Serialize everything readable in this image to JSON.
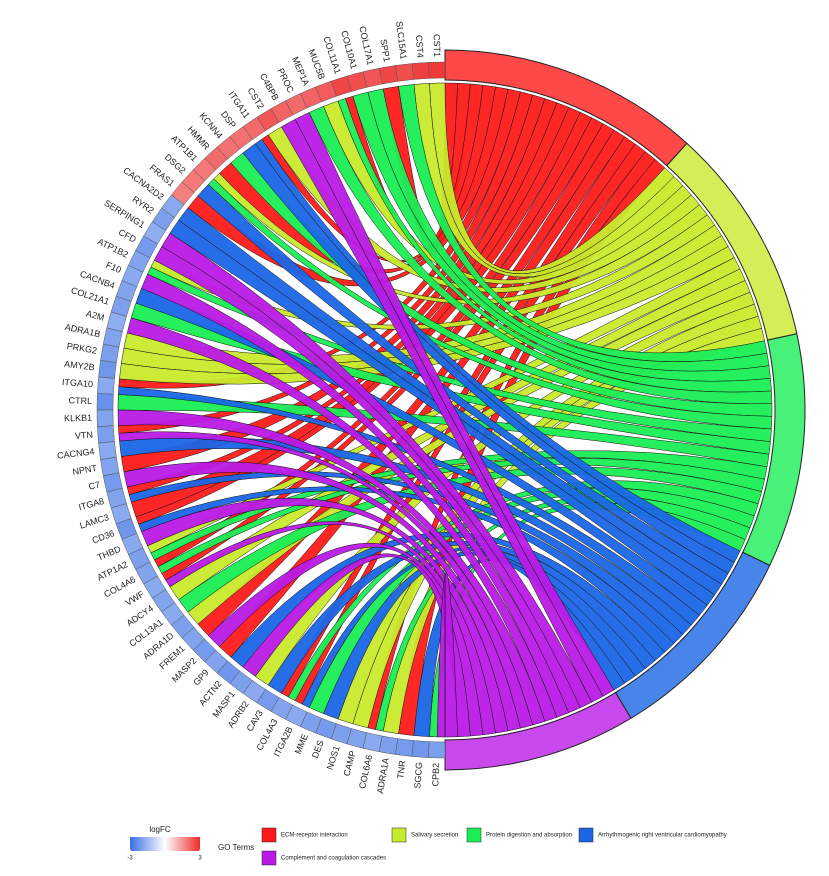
{
  "chart_data": {
    "type": "chord",
    "genes": [
      {
        "name": "CST1",
        "logfc": 2.8
      },
      {
        "name": "CST4",
        "logfc": 2.7
      },
      {
        "name": "SLC15A1",
        "logfc": 2.5
      },
      {
        "name": "SPP1",
        "logfc": 2.6
      },
      {
        "name": "COL17A1",
        "logfc": 2.4
      },
      {
        "name": "COL10A1",
        "logfc": 2.5
      },
      {
        "name": "COL11A1",
        "logfc": 2.6
      },
      {
        "name": "MUC5B",
        "logfc": 2.3
      },
      {
        "name": "MEP1A",
        "logfc": 2.2
      },
      {
        "name": "PROC",
        "logfc": 2.1
      },
      {
        "name": "C4BPB",
        "logfc": 2.2
      },
      {
        "name": "CST2",
        "logfc": 2.4
      },
      {
        "name": "ITGA11",
        "logfc": 2.1
      },
      {
        "name": "DSP",
        "logfc": 2.0
      },
      {
        "name": "KCNN4",
        "logfc": 2.0
      },
      {
        "name": "HMMR",
        "logfc": 2.1
      },
      {
        "name": "ATP1B1",
        "logfc": 1.9
      },
      {
        "name": "DSG2",
        "logfc": 1.9
      },
      {
        "name": "FRAS1",
        "logfc": 1.8
      },
      {
        "name": "CACNA2D2",
        "logfc": -1.8
      },
      {
        "name": "RYR2",
        "logfc": -2.0
      },
      {
        "name": "SERPING1",
        "logfc": -1.7
      },
      {
        "name": "CFD",
        "logfc": -2.1
      },
      {
        "name": "ATP1B2",
        "logfc": -1.9
      },
      {
        "name": "F10",
        "logfc": -1.8
      },
      {
        "name": "CACNB4",
        "logfc": -1.9
      },
      {
        "name": "COL21A1",
        "logfc": -2.0
      },
      {
        "name": "A2M",
        "logfc": -1.7
      },
      {
        "name": "ADRA1B",
        "logfc": -1.9
      },
      {
        "name": "PRKG2",
        "logfc": -2.0
      },
      {
        "name": "AMY2B",
        "logfc": -2.2
      },
      {
        "name": "ITGA10",
        "logfc": -1.8
      },
      {
        "name": "CTRL",
        "logfc": -2.3
      },
      {
        "name": "KLKB1",
        "logfc": -1.9
      },
      {
        "name": "VTN",
        "logfc": -2.0
      },
      {
        "name": "CACNG4",
        "logfc": -1.8
      },
      {
        "name": "NPNT",
        "logfc": -1.9
      },
      {
        "name": "C7",
        "logfc": -2.1
      },
      {
        "name": "ITGA8",
        "logfc": -1.9
      },
      {
        "name": "LAMC3",
        "logfc": -1.8
      },
      {
        "name": "CD36",
        "logfc": -2.2
      },
      {
        "name": "THBD",
        "logfc": -1.8
      },
      {
        "name": "ATP1A2",
        "logfc": -2.0
      },
      {
        "name": "COL4A6",
        "logfc": -1.9
      },
      {
        "name": "VWF",
        "logfc": -1.8
      },
      {
        "name": "ADCY4",
        "logfc": -1.9
      },
      {
        "name": "COL13A1",
        "logfc": -1.8
      },
      {
        "name": "ADRA1D",
        "logfc": -2.0
      },
      {
        "name": "FREM1",
        "logfc": -1.9
      },
      {
        "name": "MASP2",
        "logfc": -2.1
      },
      {
        "name": "GP9",
        "logfc": -1.9
      },
      {
        "name": "ACTN2",
        "logfc": -2.2
      },
      {
        "name": "MASP1",
        "logfc": -2.0
      },
      {
        "name": "ADRB2",
        "logfc": -1.8
      },
      {
        "name": "CAV3",
        "logfc": -2.1
      },
      {
        "name": "COL4A3",
        "logfc": -1.9
      },
      {
        "name": "ITGA2B",
        "logfc": -1.8
      },
      {
        "name": "MME",
        "logfc": -2.0
      },
      {
        "name": "DES",
        "logfc": -2.1
      },
      {
        "name": "NOS1",
        "logfc": -2.0
      },
      {
        "name": "CAMP",
        "logfc": -1.9
      },
      {
        "name": "COL6A6",
        "logfc": -1.8
      },
      {
        "name": "ADRA1A",
        "logfc": -2.0
      },
      {
        "name": "TNR",
        "logfc": -2.1
      },
      {
        "name": "SGCG",
        "logfc": -2.2
      },
      {
        "name": "CPB2",
        "logfc": -2.0
      }
    ],
    "terms": [
      {
        "name": "ECM-receptor interaction",
        "color": "#ff1a1a",
        "members": [
          3,
          6,
          12,
          15,
          18,
          31,
          34,
          36,
          38,
          39,
          40,
          43,
          44,
          48,
          50,
          55,
          56,
          61,
          63
        ]
      },
      {
        "name": "Salivary secretion",
        "color": "#c8ea2c",
        "members": [
          0,
          1,
          7,
          11,
          16,
          23,
          28,
          29,
          30,
          42,
          45,
          47,
          53,
          59,
          60,
          62
        ]
      },
      {
        "name": "Protein digestion and absorption",
        "color": "#1aee55",
        "members": [
          2,
          4,
          5,
          6,
          8,
          14,
          16,
          23,
          26,
          32,
          42,
          43,
          46,
          55,
          57,
          61,
          65
        ]
      },
      {
        "name": "Arrhythmogenic right ventricular cardiomyopathy",
        "color": "#1a66e6",
        "members": [
          12,
          13,
          17,
          19,
          20,
          25,
          31,
          35,
          38,
          40,
          51,
          54,
          56,
          58,
          64
        ]
      },
      {
        "name": "Complement and coagulation cascades",
        "color": "#bb1ae6",
        "members": [
          9,
          10,
          21,
          22,
          24,
          27,
          33,
          34,
          37,
          41,
          44,
          49,
          52,
          65
        ]
      }
    ],
    "legend": {
      "title": "logFC",
      "clim": [
        -3,
        3
      ],
      "ticks": [
        -3,
        3
      ],
      "colors": [
        "#3a6fe6",
        "#ffffff",
        "#ee2a2a"
      ],
      "terms_title": "GO Terms"
    }
  }
}
